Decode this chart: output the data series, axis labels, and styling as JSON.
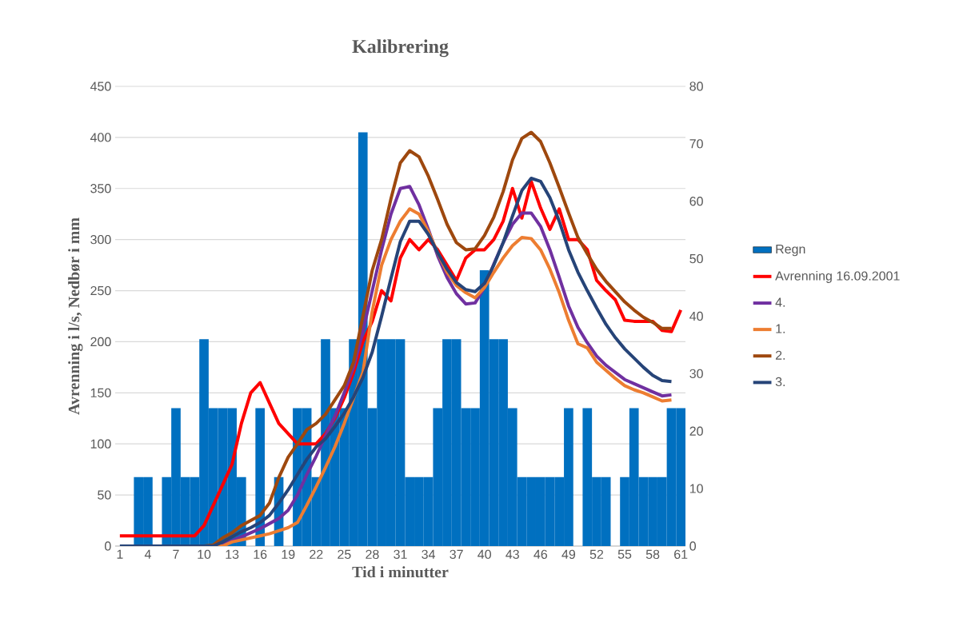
{
  "chart_data": {
    "type": "bar",
    "title": "Kalibrering",
    "xlabel": "Tid i minutter",
    "ylabel": "Avrenning i l/s, Nedbør i mm",
    "categories": [
      "1",
      null,
      null,
      "4",
      null,
      null,
      "7",
      null,
      null,
      "10",
      null,
      null,
      "13",
      null,
      null,
      "16",
      null,
      null,
      "19",
      null,
      null,
      "22",
      null,
      null,
      "25",
      null,
      null,
      "28",
      null,
      null,
      "31",
      null,
      null,
      "34",
      null,
      null,
      "37",
      null,
      null,
      "40",
      null,
      null,
      "43",
      null,
      null,
      "46",
      null,
      null,
      "49",
      null,
      null,
      "52",
      null,
      null,
      "55",
      null,
      null,
      "58",
      null,
      null,
      "61"
    ],
    "series": [
      {
        "name": "Regn",
        "axis": "y2",
        "color": "#0070c0",
        "values": [
          0,
          0,
          12,
          12,
          0,
          12,
          24,
          12,
          12,
          36,
          24,
          24,
          24,
          12,
          0,
          24,
          0,
          12,
          0,
          24,
          24,
          12,
          36,
          24,
          24,
          36,
          72,
          24,
          36,
          36,
          36,
          12,
          12,
          12,
          24,
          36,
          36,
          24,
          24,
          48,
          36,
          36,
          24,
          12,
          12,
          12,
          12,
          12,
          24,
          0,
          24,
          12,
          12,
          0,
          12,
          24,
          12,
          12,
          12,
          24,
          24
        ]
      },
      {
        "name": "Avrenning 16.09.2001",
        "type": "line",
        "color": "#ff0000",
        "values": [
          10,
          10,
          10,
          10,
          10,
          10,
          10,
          10,
          10,
          20,
          40,
          60,
          80,
          120,
          150,
          160,
          140,
          120,
          110,
          100,
          100,
          100,
          110,
          125,
          145,
          170,
          200,
          220,
          250,
          240,
          282,
          300,
          290,
          300,
          290,
          275,
          260,
          282,
          290,
          290,
          300,
          318,
          350,
          321,
          357,
          331,
          310,
          330,
          300,
          300,
          290,
          260,
          250,
          241,
          221,
          220,
          220,
          220,
          211,
          210,
          231
        ]
      },
      {
        "name": "4.",
        "type": "line",
        "color": "#7030a0",
        "values": [
          null,
          null,
          null,
          null,
          null,
          null,
          null,
          null,
          null,
          null,
          0,
          2,
          5,
          9,
          13,
          17,
          22,
          27,
          35,
          50,
          70,
          88,
          108,
          127,
          150,
          175,
          210,
          250,
          290,
          325,
          350,
          352,
          334,
          310,
          284,
          263,
          247,
          237,
          238,
          253,
          276,
          297,
          315,
          326,
          326,
          313,
          290,
          263,
          235,
          214,
          199,
          186,
          177,
          170,
          163,
          159,
          155,
          151,
          147,
          148,
          null
        ]
      },
      {
        "name": "1.",
        "type": "line",
        "color": "#ed7d31",
        "values": [
          null,
          null,
          null,
          null,
          null,
          null,
          null,
          null,
          null,
          0,
          0,
          0,
          4,
          6,
          8,
          10,
          12,
          15,
          18,
          23,
          40,
          58,
          77,
          97,
          120,
          145,
          170,
          230,
          275,
          300,
          318,
          330,
          325,
          308,
          287,
          268,
          255,
          248,
          243,
          253,
          268,
          282,
          294,
          302,
          301,
          290,
          271,
          248,
          221,
          198,
          194,
          180,
          172,
          164,
          157,
          153,
          150,
          146,
          142,
          143,
          null
        ]
      },
      {
        "name": "2.",
        "type": "line",
        "color": "#9e480e",
        "values": [
          null,
          null,
          null,
          null,
          null,
          null,
          null,
          null,
          0,
          0,
          1,
          8,
          13,
          20,
          25,
          30,
          42,
          67,
          87,
          100,
          114,
          120,
          129,
          143,
          157,
          180,
          225,
          270,
          300,
          340,
          375,
          387,
          381,
          362,
          339,
          315,
          297,
          290,
          291,
          304,
          322,
          347,
          378,
          399,
          405,
          396,
          375,
          351,
          326,
          302,
          286,
          271,
          259,
          249,
          239,
          231,
          224,
          219,
          213,
          213,
          null
        ]
      },
      {
        "name": "3.",
        "type": "line",
        "color": "#264478",
        "values": [
          0,
          0,
          0,
          0,
          0,
          0,
          0,
          0,
          0,
          0,
          0,
          4,
          9,
          14,
          18,
          23,
          30,
          42,
          55,
          70,
          85,
          97,
          105,
          117,
          130,
          146,
          165,
          190,
          225,
          262,
          298,
          318,
          318,
          305,
          287,
          271,
          258,
          251,
          249,
          257,
          275,
          297,
          323,
          348,
          360,
          357,
          341,
          318,
          290,
          268,
          250,
          233,
          217,
          204,
          193,
          184,
          175,
          167,
          162,
          161,
          null
        ]
      }
    ],
    "ylim": [
      0,
      450
    ],
    "yticks": [
      0,
      50,
      100,
      150,
      200,
      250,
      300,
      350,
      400,
      450
    ],
    "y2lim": [
      0,
      80
    ],
    "y2ticks": [
      0,
      10,
      20,
      30,
      40,
      50,
      60,
      70,
      80
    ],
    "grid": "y",
    "legend": "right",
    "line_style": "solid",
    "marker": "none"
  }
}
